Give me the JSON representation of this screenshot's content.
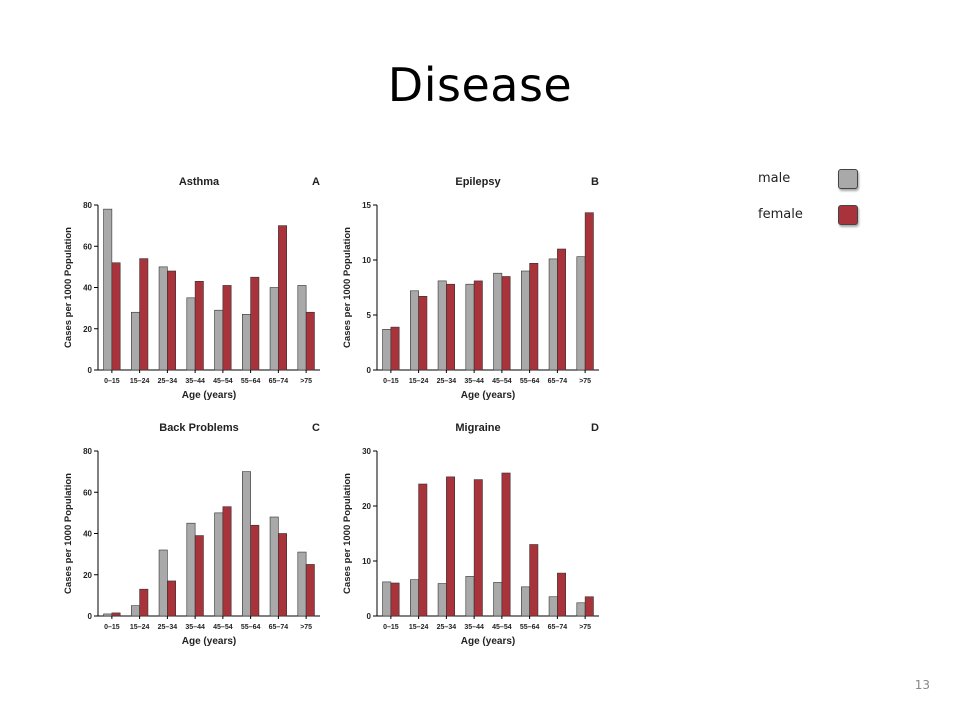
{
  "slide": {
    "title": "Disease",
    "page_number": "13"
  },
  "legend": {
    "items": [
      {
        "label": "male",
        "color": "#a9a9a9"
      },
      {
        "label": "female",
        "color": "#a8333a"
      }
    ]
  },
  "colors": {
    "male": "#a9a9a9",
    "female": "#a8333a",
    "outline": "#333333"
  },
  "chart_data": [
    {
      "type": "bar",
      "title": "Asthma",
      "panel": "A",
      "xlabel": "Age (years)",
      "ylabel": "Cases per 1000 Population",
      "ylim": [
        0,
        80
      ],
      "yticks": [
        0,
        20,
        40,
        60,
        80
      ],
      "categories": [
        "0–15",
        "15–24",
        "25–34",
        "35–44",
        "45–54",
        "55–64",
        "65–74",
        ">75"
      ],
      "series": [
        {
          "values": [
            78,
            28,
            50,
            35,
            29,
            27,
            40,
            41
          ]
        },
        {
          "values": [
            52,
            54,
            48,
            43,
            41,
            45,
            70,
            28
          ]
        }
      ]
    },
    {
      "type": "bar",
      "title": "Epilepsy",
      "panel": "B",
      "xlabel": "Age (years)",
      "ylabel": "Cases per 1000 Population",
      "ylim": [
        0,
        15
      ],
      "yticks": [
        0,
        5,
        10,
        15
      ],
      "categories": [
        "0–15",
        "15–24",
        "25–34",
        "35–44",
        "45–54",
        "55–64",
        "65–74",
        ">75"
      ],
      "series": [
        {
          "values": [
            3.7,
            7.2,
            8.1,
            7.8,
            8.8,
            9.0,
            10.1,
            10.3
          ]
        },
        {
          "values": [
            3.9,
            6.7,
            7.8,
            8.1,
            8.5,
            9.7,
            11.0,
            14.3
          ]
        }
      ]
    },
    {
      "type": "bar",
      "title": "Back Problems",
      "panel": "C",
      "xlabel": "Age (years)",
      "ylabel": "Cases per 1000 Population",
      "ylim": [
        0,
        80
      ],
      "yticks": [
        0,
        20,
        40,
        60,
        80
      ],
      "categories": [
        "0–15",
        "15–24",
        "25–34",
        "35–44",
        "45–54",
        "55–64",
        "65–74",
        ">75"
      ],
      "series": [
        {
          "values": [
            1,
            5,
            32,
            45,
            50,
            70,
            48,
            31
          ]
        },
        {
          "values": [
            1.5,
            13,
            17,
            39,
            53,
            44,
            40,
            25
          ]
        }
      ]
    },
    {
      "type": "bar",
      "title": "Migraine",
      "panel": "D",
      "xlabel": "Age (years)",
      "ylabel": "Cases per 1000 Population",
      "ylim": [
        0,
        30
      ],
      "yticks": [
        0,
        10,
        20,
        30
      ],
      "categories": [
        "0–15",
        "15–24",
        "25–34",
        "35–44",
        "45–54",
        "55–64",
        "65–74",
        ">75"
      ],
      "series": [
        {
          "values": [
            6.2,
            6.6,
            5.9,
            7.2,
            6.1,
            5.3,
            3.5,
            2.4
          ]
        },
        {
          "values": [
            6.0,
            24.0,
            25.3,
            24.8,
            26.0,
            13.0,
            7.8,
            3.5
          ]
        }
      ]
    }
  ]
}
